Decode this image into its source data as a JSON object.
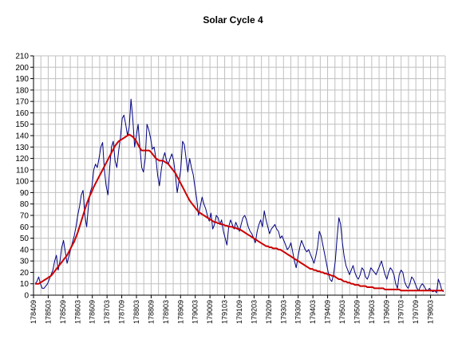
{
  "chart_data": {
    "type": "line",
    "title": "Solar Cycle 4",
    "xlabel": "",
    "ylabel": "",
    "ylim": [
      0,
      210
    ],
    "yticks": [
      0,
      10,
      20,
      30,
      40,
      50,
      60,
      70,
      80,
      90,
      100,
      110,
      120,
      130,
      140,
      150,
      160,
      170,
      180,
      190,
      200,
      210
    ],
    "x_start": "178409",
    "x_end": "179806",
    "xtick_labels": [
      "178409",
      "178503",
      "178509",
      "178603",
      "178609",
      "178703",
      "178709",
      "178803",
      "178809",
      "178903",
      "178909",
      "179003",
      "179009",
      "179103",
      "179109",
      "179203",
      "179209",
      "179303",
      "179309",
      "179403",
      "179409",
      "179503",
      "179509",
      "179603",
      "179609",
      "179703",
      "179709",
      "179803"
    ],
    "grid": true,
    "legend": "none",
    "series": [
      {
        "style": "monthly",
        "color": "#000080",
        "values": [
          10,
          12,
          16,
          10,
          6,
          6,
          8,
          10,
          14,
          18,
          22,
          30,
          35,
          22,
          30,
          42,
          48,
          38,
          28,
          34,
          40,
          46,
          52,
          60,
          70,
          78,
          88,
          92,
          70,
          60,
          78,
          90,
          95,
          110,
          115,
          112,
          120,
          130,
          134,
          110,
          96,
          88,
          112,
          130,
          135,
          118,
          112,
          126,
          138,
          155,
          158,
          150,
          140,
          148,
          172,
          155,
          130,
          140,
          150,
          130,
          112,
          108,
          120,
          150,
          145,
          138,
          128,
          130,
          120,
          105,
          96,
          110,
          120,
          125,
          118,
          115,
          120,
          124,
          118,
          105,
          90,
          100,
          110,
          135,
          132,
          120,
          108,
          120,
          112,
          106,
          95,
          84,
          70,
          78,
          86,
          80,
          76,
          70,
          65,
          72,
          58,
          62,
          70,
          68,
          62,
          66,
          56,
          50,
          44,
          60,
          66,
          62,
          58,
          64,
          60,
          56,
          62,
          68,
          70,
          66,
          60,
          56,
          54,
          50,
          46,
          56,
          62,
          66,
          60,
          74,
          66,
          60,
          54,
          58,
          60,
          62,
          58,
          56,
          50,
          52,
          48,
          44,
          40,
          42,
          46,
          38,
          30,
          24,
          34,
          42,
          48,
          44,
          40,
          38,
          40,
          36,
          32,
          28,
          34,
          42,
          56,
          52,
          44,
          36,
          28,
          20,
          14,
          12,
          18,
          30,
          50,
          68,
          62,
          46,
          34,
          26,
          22,
          18,
          22,
          26,
          20,
          16,
          14,
          18,
          24,
          22,
          16,
          14,
          18,
          24,
          22,
          20,
          18,
          22,
          26,
          30,
          24,
          18,
          14,
          20,
          24,
          22,
          18,
          10,
          6,
          18,
          22,
          20,
          12,
          8,
          6,
          10,
          16,
          14,
          10,
          6,
          4,
          8,
          10,
          8,
          5,
          4,
          6,
          4,
          3,
          4,
          2,
          14,
          10,
          4,
          3
        ]
      },
      {
        "style": "smoothed",
        "color": "#cc0000",
        "values": [
          10,
          10,
          10,
          11,
          12,
          13,
          14,
          15,
          16,
          17,
          19,
          21,
          23,
          25,
          27,
          29,
          31,
          33,
          35,
          38,
          41,
          44,
          47,
          51,
          55,
          60,
          65,
          70,
          75,
          80,
          84,
          88,
          91,
          95,
          98,
          101,
          104,
          107,
          110,
          113,
          116,
          119,
          122,
          125,
          128,
          131,
          133,
          135,
          136,
          137,
          138,
          139,
          140,
          141,
          140,
          139,
          137,
          135,
          132,
          129,
          127,
          127,
          127,
          127,
          127,
          126,
          124,
          122,
          120,
          119,
          118,
          118,
          118,
          117,
          116,
          115,
          113,
          111,
          109,
          107,
          104,
          101,
          98,
          95,
          92,
          89,
          86,
          83,
          81,
          79,
          77,
          75,
          73,
          72,
          71,
          70,
          69,
          68,
          67,
          66,
          65,
          64,
          64,
          63,
          63,
          62,
          62,
          61,
          61,
          60,
          60,
          60,
          59,
          59,
          58,
          58,
          57,
          56,
          55,
          54,
          53,
          52,
          51,
          50,
          49,
          48,
          47,
          46,
          45,
          44,
          43,
          43,
          42,
          42,
          41,
          41,
          41,
          40,
          40,
          39,
          38,
          37,
          36,
          35,
          34,
          33,
          32,
          31,
          30,
          29,
          28,
          27,
          26,
          25,
          24,
          23,
          23,
          22,
          22,
          21,
          21,
          20,
          20,
          19,
          19,
          18,
          18,
          17,
          17,
          16,
          15,
          14,
          14,
          13,
          12,
          12,
          11,
          11,
          10,
          10,
          9,
          9,
          9,
          8,
          8,
          8,
          8,
          7,
          7,
          7,
          7,
          6,
          6,
          6,
          6,
          6,
          6,
          5,
          5,
          5,
          5,
          5,
          5,
          5,
          5,
          5,
          4,
          4,
          4,
          4,
          4,
          4,
          4,
          4,
          4,
          4,
          4,
          4,
          4,
          4,
          4,
          4,
          4,
          4,
          4,
          4,
          4,
          4,
          4,
          4,
          4
        ]
      }
    ]
  }
}
